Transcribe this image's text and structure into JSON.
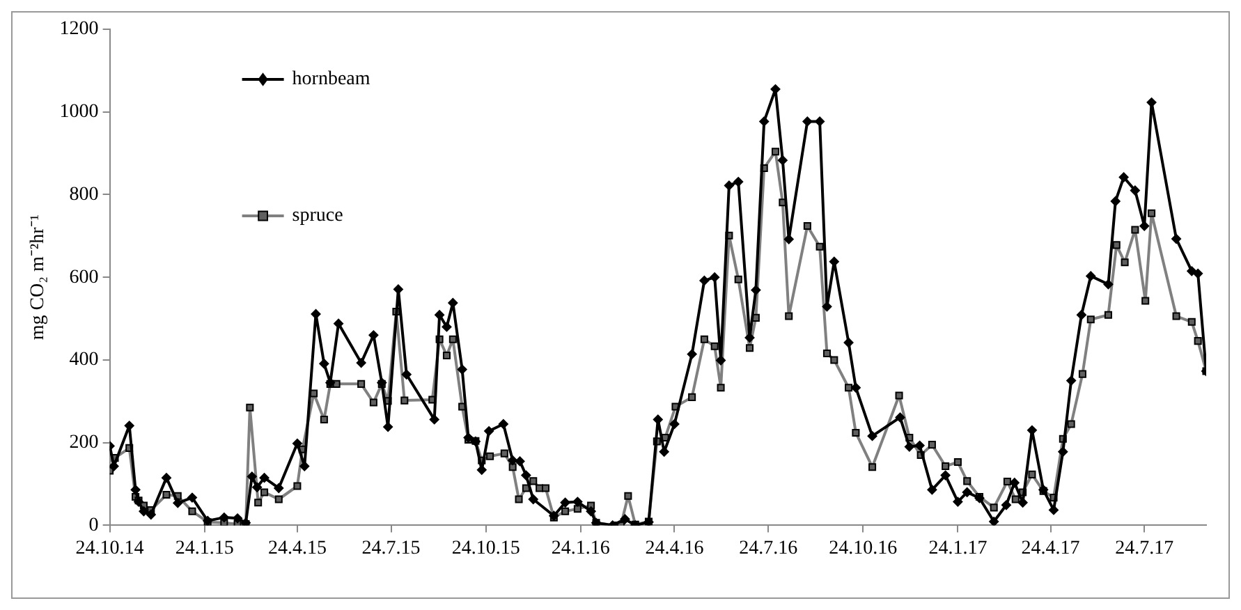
{
  "chart_data": {
    "type": "line",
    "ylabel": "mg CO₂ m⁻²hr⁻¹",
    "xlim": [
      "2014-10-24",
      "2017-09-22"
    ],
    "xticks": [
      {
        "value": "2014-10-24",
        "label": "24.10.14"
      },
      {
        "value": "2015-01-24",
        "label": "24.1.15"
      },
      {
        "value": "2015-04-24",
        "label": "24.4.15"
      },
      {
        "value": "2015-07-24",
        "label": "24.7.15"
      },
      {
        "value": "2015-10-24",
        "label": "24.10.15"
      },
      {
        "value": "2016-01-24",
        "label": "24.1.16"
      },
      {
        "value": "2016-04-24",
        "label": "24.4.16"
      },
      {
        "value": "2016-07-24",
        "label": "24.7.16"
      },
      {
        "value": "2016-10-24",
        "label": "24.10.16"
      },
      {
        "value": "2017-01-24",
        "label": "24.1.17"
      },
      {
        "value": "2017-04-24",
        "label": "24.4.17"
      },
      {
        "value": "2017-07-24",
        "label": "24.7.17"
      }
    ],
    "ylim": [
      0,
      1200
    ],
    "yticks": [
      0,
      200,
      400,
      600,
      800,
      1000,
      1200
    ],
    "legend": "top left",
    "series": [
      {
        "name": "hornbeam",
        "color": "#000000",
        "marker": "diamond",
        "x": [
          "2014-10-24",
          "2014-10-28",
          "2014-11-12",
          "2014-11-18",
          "2014-11-21",
          "2014-11-26",
          "2014-12-03",
          "2014-12-18",
          "2014-12-29",
          "2015-01-12",
          "2015-01-27",
          "2015-02-12",
          "2015-02-25",
          "2015-03-05",
          "2015-03-11",
          "2015-03-16",
          "2015-03-23",
          "2015-04-06",
          "2015-04-24",
          "2015-05-01",
          "2015-05-12",
          "2015-05-20",
          "2015-05-26",
          "2015-06-03",
          "2015-06-25",
          "2015-07-07",
          "2015-07-15",
          "2015-07-21",
          "2015-07-31",
          "2015-08-08",
          "2015-09-04",
          "2015-09-09",
          "2015-09-16",
          "2015-09-22",
          "2015-10-01",
          "2015-10-07",
          "2015-10-14",
          "2015-10-20",
          "2015-10-27",
          "2015-11-10",
          "2015-11-19",
          "2015-11-26",
          "2015-12-02",
          "2015-12-09",
          "2015-12-29",
          "2016-01-09",
          "2016-01-21",
          "2016-02-03",
          "2016-02-08",
          "2016-02-24",
          "2016-03-07",
          "2016-03-17",
          "2016-03-30",
          "2016-04-08",
          "2016-04-14",
          "2016-04-24",
          "2016-05-11",
          "2016-05-23",
          "2016-06-02",
          "2016-06-08",
          "2016-06-16",
          "2016-06-25",
          "2016-07-06",
          "2016-07-12",
          "2016-07-20",
          "2016-07-31",
          "2016-08-07",
          "2016-08-13",
          "2016-08-31",
          "2016-09-12",
          "2016-09-19",
          "2016-09-26",
          "2016-10-10",
          "2016-10-17",
          "2016-11-02",
          "2016-11-29",
          "2016-12-08",
          "2016-12-18",
          "2016-12-30",
          "2017-01-12",
          "2017-01-24",
          "2017-02-02",
          "2017-02-14",
          "2017-02-28",
          "2017-03-12",
          "2017-03-20",
          "2017-03-28",
          "2017-04-06",
          "2017-04-17",
          "2017-04-27",
          "2017-05-06",
          "2017-05-14",
          "2017-05-24",
          "2017-06-02",
          "2017-06-19",
          "2017-06-26",
          "2017-07-04",
          "2017-07-15",
          "2017-07-24",
          "2017-07-31",
          "2017-08-24",
          "2017-09-08",
          "2017-09-14",
          "2017-09-22"
        ],
        "values": [
          192,
          143,
          241,
          86,
          57,
          34,
          26,
          115,
          54,
          67,
          11,
          19,
          17,
          6,
          118,
          92,
          115,
          90,
          198,
          143,
          511,
          391,
          345,
          488,
          393,
          460,
          345,
          238,
          571,
          365,
          256,
          509,
          480,
          538,
          377,
          212,
          203,
          134,
          228,
          245,
          157,
          155,
          121,
          63,
          23,
          55,
          57,
          34,
          6,
          0,
          15,
          0,
          8,
          256,
          178,
          245,
          414,
          592,
          600,
          399,
          822,
          831,
          454,
          569,
          977,
          1055,
          883,
          692,
          977,
          977,
          529,
          638,
          442,
          333,
          216,
          261,
          190,
          193,
          86,
          121,
          57,
          80,
          66,
          9,
          49,
          103,
          55,
          230,
          86,
          37,
          178,
          350,
          509,
          603,
          583,
          784,
          842,
          810,
          724,
          1023,
          693,
          615,
          609,
          373
        ]
      },
      {
        "name": "spruce",
        "color": "#808080",
        "marker": "square",
        "x": [
          "2014-10-24",
          "2014-10-29",
          "2014-11-12",
          "2014-11-18",
          "2014-11-21",
          "2014-11-26",
          "2014-12-03",
          "2014-12-18",
          "2014-12-29",
          "2015-01-12",
          "2015-01-27",
          "2015-02-12",
          "2015-02-25",
          "2015-03-05",
          "2015-03-09",
          "2015-03-17",
          "2015-03-23",
          "2015-04-06",
          "2015-04-24",
          "2015-04-29",
          "2015-05-10",
          "2015-05-20",
          "2015-05-26",
          "2015-06-01",
          "2015-06-25",
          "2015-07-07",
          "2015-07-15",
          "2015-07-21",
          "2015-07-29",
          "2015-08-06",
          "2015-09-02",
          "2015-09-09",
          "2015-09-16",
          "2015-09-22",
          "2015-10-01",
          "2015-10-07",
          "2015-10-14",
          "2015-10-20",
          "2015-10-28",
          "2015-11-11",
          "2015-11-19",
          "2015-11-25",
          "2015-12-02",
          "2015-12-09",
          "2015-12-15",
          "2015-12-21",
          "2015-12-29",
          "2016-01-09",
          "2016-01-21",
          "2016-02-03",
          "2016-02-08",
          "2016-02-26",
          "2016-03-03",
          "2016-03-10",
          "2016-03-17",
          "2016-03-30",
          "2016-04-07",
          "2016-04-15",
          "2016-04-25",
          "2016-05-11",
          "2016-05-23",
          "2016-06-02",
          "2016-06-08",
          "2016-06-16",
          "2016-06-25",
          "2016-07-06",
          "2016-07-12",
          "2016-07-20",
          "2016-07-31",
          "2016-08-07",
          "2016-08-13",
          "2016-08-31",
          "2016-09-12",
          "2016-09-19",
          "2016-09-26",
          "2016-10-10",
          "2016-10-17",
          "2016-11-02",
          "2016-11-28",
          "2016-12-08",
          "2016-12-19",
          "2016-12-30",
          "2017-01-12",
          "2017-01-24",
          "2017-02-02",
          "2017-02-14",
          "2017-02-28",
          "2017-03-13",
          "2017-03-21",
          "2017-03-28",
          "2017-04-06",
          "2017-04-17",
          "2017-04-27",
          "2017-05-06",
          "2017-05-14",
          "2017-05-25",
          "2017-06-02",
          "2017-06-19",
          "2017-06-27",
          "2017-07-05",
          "2017-07-15",
          "2017-07-25",
          "2017-07-31",
          "2017-08-24",
          "2017-09-08",
          "2017-09-14",
          "2017-09-22"
        ],
        "values": [
          132,
          163,
          187,
          69,
          60,
          48,
          37,
          74,
          71,
          34,
          8,
          6,
          3,
          3,
          285,
          55,
          80,
          63,
          95,
          184,
          319,
          256,
          342,
          342,
          342,
          297,
          342,
          301,
          517,
          302,
          304,
          450,
          411,
          450,
          287,
          207,
          204,
          157,
          167,
          174,
          141,
          63,
          90,
          107,
          90,
          90,
          19,
          34,
          40,
          48,
          6,
          0,
          0,
          71,
          2,
          9,
          203,
          212,
          287,
          310,
          450,
          433,
          333,
          701,
          595,
          429,
          502,
          864,
          904,
          781,
          506,
          724,
          674,
          416,
          400,
          333,
          224,
          141,
          314,
          212,
          170,
          195,
          143,
          153,
          107,
          69,
          43,
          106,
          63,
          80,
          123,
          83,
          67,
          209,
          245,
          366,
          498,
          509,
          678,
          636,
          715,
          543,
          755,
          506,
          492,
          446,
          373
        ]
      }
    ]
  }
}
